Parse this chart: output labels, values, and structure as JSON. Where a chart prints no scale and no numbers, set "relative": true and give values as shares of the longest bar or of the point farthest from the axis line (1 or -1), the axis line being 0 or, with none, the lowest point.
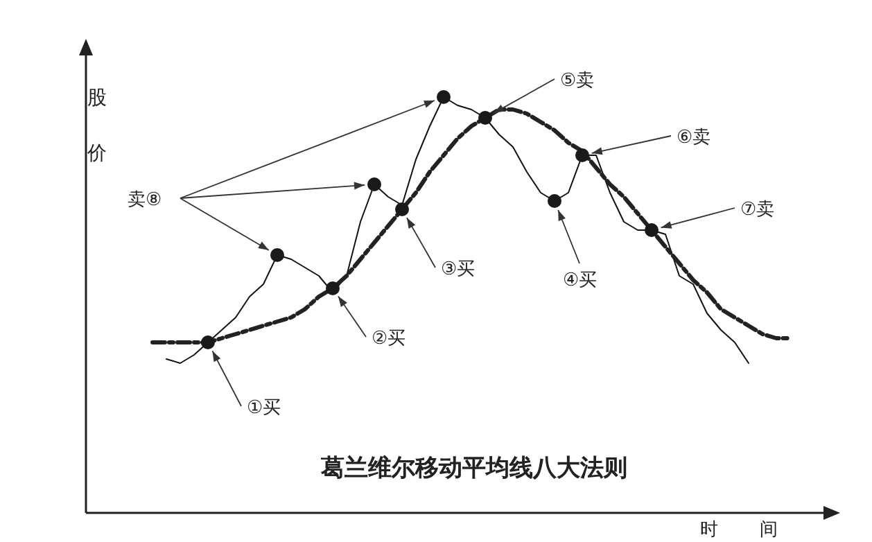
{
  "chart_data": {
    "type": "line",
    "title": "葛兰维尔移动平均线八大法则",
    "xlabel": "时间",
    "ylabel": "股价",
    "relative": true,
    "grid": false,
    "categories": [
      null,
      null,
      null,
      null,
      null,
      null,
      null,
      null,
      null,
      null,
      null,
      null,
      null,
      null,
      null,
      null,
      null,
      null,
      null,
      null,
      null,
      null,
      null,
      null,
      null,
      null,
      null,
      null,
      null,
      null,
      null,
      null,
      null,
      null,
      null,
      null,
      null,
      null,
      null,
      null,
      null,
      null,
      null,
      null,
      null,
      null,
      null
    ],
    "series": [
      {
        "color": "#111111",
        "line_style": "solid",
        "values": [
          null,
          0.37,
          0.36,
          0.38,
          0.41,
          0.44,
          0.47,
          0.52,
          0.55,
          0.62,
          0.61,
          0.59,
          0.57,
          0.53,
          0.57,
          0.7,
          0.79,
          0.76,
          0.74,
          0.85,
          0.93,
          1,
          0.98,
          0.97,
          0.95,
          0.91,
          0.88,
          0.82,
          0.77,
          0.75,
          0.77,
          0.86,
          0.86,
          0.77,
          0.7,
          0.68,
          0.68,
          0.67,
          0.57,
          0.55,
          0.48,
          0.44,
          0.41,
          0.36,
          null,
          null,
          null
        ]
      },
      {
        "color": "#222222",
        "line_style": "dashed",
        "values": [
          0.41,
          0.41,
          0.41,
          0.41,
          0.41,
          0.42,
          0.43,
          0.44,
          0.45,
          0.46,
          0.47,
          0.49,
          0.52,
          0.54,
          0.57,
          0.61,
          0.65,
          0.69,
          0.73,
          0.77,
          0.82,
          0.86,
          0.9,
          0.93,
          0.95,
          0.97,
          0.97,
          0.96,
          0.94,
          0.92,
          0.89,
          0.87,
          0.83,
          0.79,
          0.76,
          0.72,
          0.68,
          0.64,
          0.6,
          0.56,
          0.53,
          0.49,
          0.47,
          0.45,
          0.43,
          0.42,
          0.42
        ]
      }
    ],
    "annotations": [
      "①买",
      "②买",
      "③买",
      "④买",
      "⑤卖",
      "⑥卖",
      "⑦卖",
      "卖⑧"
    ]
  }
}
